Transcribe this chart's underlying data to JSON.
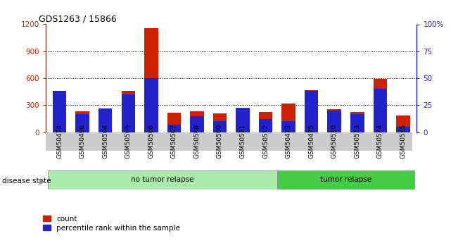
{
  "title": "GDS1263 / 15866",
  "samples": [
    "GSM50474",
    "GSM50496",
    "GSM50504",
    "GSM50505",
    "GSM50506",
    "GSM50507",
    "GSM50508",
    "GSM50509",
    "GSM50511",
    "GSM50512",
    "GSM50473",
    "GSM50475",
    "GSM50510",
    "GSM50513",
    "GSM50514",
    "GSM50515"
  ],
  "count_values": [
    450,
    235,
    260,
    460,
    1160,
    220,
    230,
    210,
    270,
    225,
    320,
    470,
    255,
    225,
    590,
    185
  ],
  "percentile_values": [
    38,
    17,
    22,
    35,
    50,
    7,
    15,
    10,
    22,
    12,
    10,
    38,
    20,
    17,
    40,
    5
  ],
  "no_relapse_count": 10,
  "tumor_relapse_count": 6,
  "group_colors": {
    "no tumor relapse": "#aaeaaa",
    "tumor relapse": "#44cc44"
  },
  "bar_color_red": "#cc2200",
  "bar_color_blue": "#2222cc",
  "left_ylim": [
    0,
    1200
  ],
  "left_yticks": [
    0,
    300,
    600,
    900,
    1200
  ],
  "right_ylim": [
    0,
    100
  ],
  "right_yticks": [
    0,
    25,
    50,
    75,
    100
  ],
  "background_color": "#ffffff",
  "xtick_bg_color": "#cccccc",
  "grid_color": "black"
}
